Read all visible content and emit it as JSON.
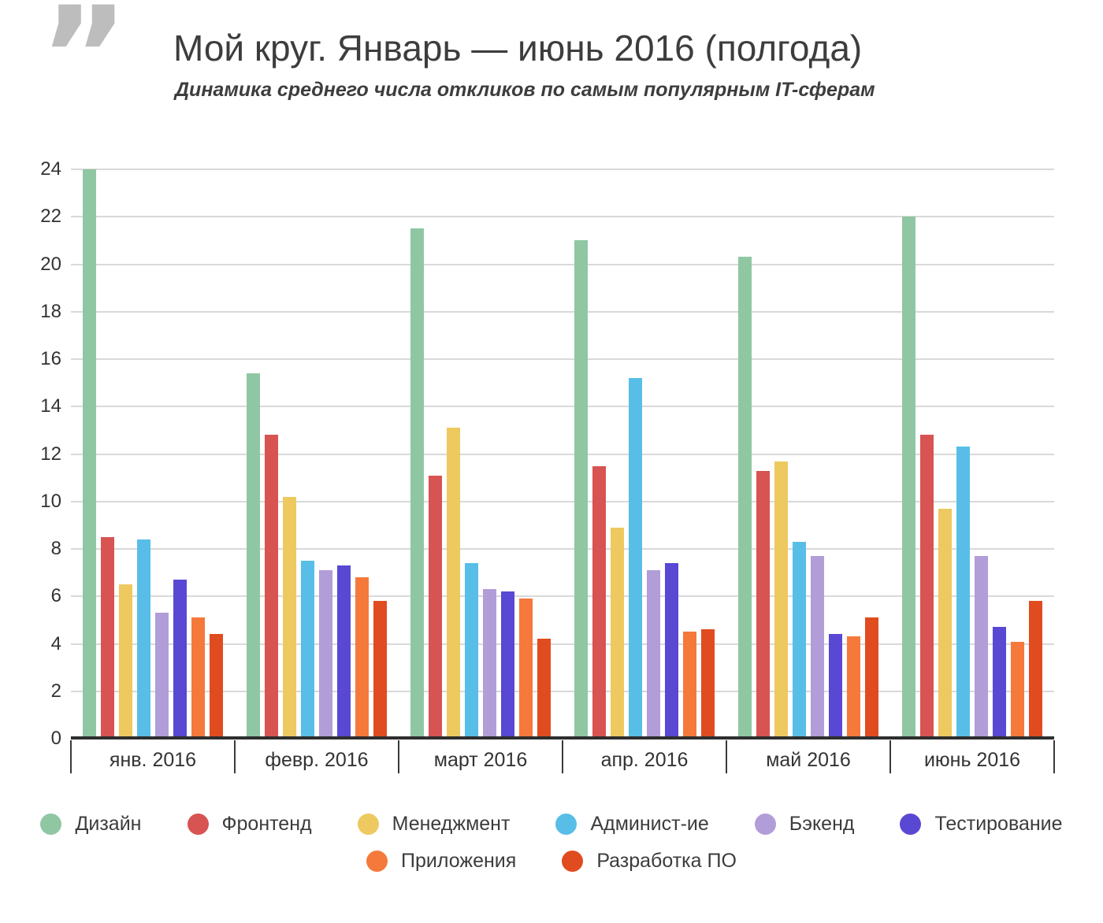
{
  "header": {
    "title": "Мой круг. Январь — июнь 2016 (полгода)",
    "subtitle": "Динамика среднего числа откликов по самым популярным IT-сферам"
  },
  "chart_data": {
    "type": "bar",
    "title": "Мой круг. Январь — июнь 2016 (полгода)",
    "subtitle": "Динамика среднего числа откликов по самым популярным IT-сферам",
    "categories": [
      "янв. 2016",
      "февр. 2016",
      "март 2016",
      "апр. 2016",
      "май 2016",
      "июнь 2016"
    ],
    "series": [
      {
        "name": "Дизайн",
        "color": "#8fc7a3",
        "values": [
          24,
          15.4,
          21.5,
          21,
          20.3,
          22
        ]
      },
      {
        "name": "Фронтенд",
        "color": "#d75452",
        "values": [
          8.5,
          12.8,
          11.1,
          11.5,
          11.3,
          12.8
        ]
      },
      {
        "name": "Менеджмент",
        "color": "#edc95f",
        "values": [
          6.5,
          10.2,
          13.1,
          8.9,
          11.7,
          9.7
        ]
      },
      {
        "name": "Админист-ие",
        "color": "#58bee8",
        "values": [
          8.4,
          7.5,
          7.4,
          15.2,
          8.3,
          12.3
        ]
      },
      {
        "name": "Бэкенд",
        "color": "#b19dd8",
        "values": [
          5.3,
          7.1,
          6.3,
          7.1,
          7.7,
          7.7
        ]
      },
      {
        "name": "Тестирование",
        "color": "#5948d3",
        "values": [
          6.7,
          7.3,
          6.2,
          7.4,
          4.4,
          4.7
        ]
      },
      {
        "name": "Приложения",
        "color": "#f5793b",
        "values": [
          5.1,
          6.8,
          5.9,
          4.5,
          4.3,
          4.1
        ]
      },
      {
        "name": "Разработка ПО",
        "color": "#e04b20",
        "values": [
          4.4,
          5.8,
          4.2,
          4.6,
          5.1,
          5.8
        ]
      }
    ],
    "xlabel": "",
    "ylabel": "",
    "ylim": [
      0,
      24
    ],
    "ytick_step": 2,
    "grid": true,
    "legend_position": "bottom",
    "legend_rows": [
      6,
      2
    ]
  }
}
